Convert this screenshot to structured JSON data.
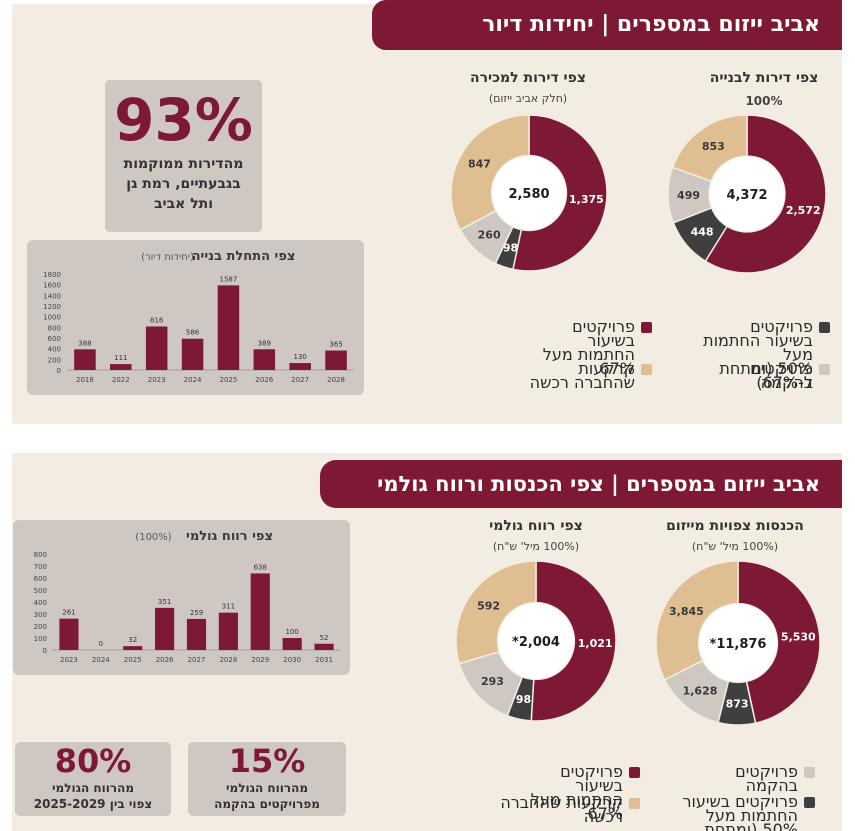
{
  "colors": {
    "maroon": "#7d1935",
    "tan": "#dfbf91",
    "gray_light": "#cfc7c2",
    "charcoal": "#3f3f3f",
    "panel": "#f3ece2"
  },
  "top": {
    "banner": "אביב ייזום במספרים | יחידות דיור",
    "donut_build": {
      "title": "צפי דירות לבנייה",
      "subtitle": "100%",
      "center": "4,372",
      "slices": [
        {
          "label": "2,572",
          "value": 2572,
          "color": "#7d1935"
        },
        {
          "label": "448",
          "value": 448,
          "color": "#3f3f3f"
        },
        {
          "label": "499",
          "value": 499,
          "color": "#cfc7c2"
        },
        {
          "label": "853",
          "value": 853,
          "color": "#dfbf91"
        }
      ]
    },
    "donut_sale": {
      "title": "צפי דירות למכירה",
      "subtitle": "(חלק אביב ייזום)",
      "center": "2,580",
      "slices": [
        {
          "label": "1,375",
          "value": 1375,
          "color": "#7d1935"
        },
        {
          "label": "98",
          "value": 98,
          "color": "#3f3f3f"
        },
        {
          "label": "260",
          "value": 260,
          "color": "#cfc7c2"
        },
        {
          "label": "847",
          "value": 847,
          "color": "#dfbf91"
        }
      ]
    },
    "stat": {
      "big": "93%",
      "line1": "מהדירות ממוקמות",
      "line2": "בגבעתיים, רמת גן",
      "line3": "ותל אביב"
    },
    "legend": {
      "maroon_a": "פרויקטים בשיעור",
      "maroon_b": "החתמות מעל 67%",
      "charcoal_a": "פרויקטים בשיעור החתמות מעל",
      "charcoal_b": "50% (ומתחת ל-67%)",
      "tan": "קרקעות שהחברה רכשה",
      "gray": "פרויקטים בהקמה"
    }
  },
  "chart_data": [
    {
      "type": "bar",
      "title": "צפי התחלת בנייה",
      "subtitle": "(יחידות דיור)",
      "categories": [
        "2018",
        "2022",
        "2023",
        "2024",
        "2025",
        "2026",
        "2027",
        "2028"
      ],
      "values": [
        388,
        111,
        816,
        586,
        1587,
        389,
        130,
        365
      ],
      "ylim": [
        0,
        1800
      ],
      "yticks": [
        0,
        200,
        400,
        600,
        800,
        1000,
        1200,
        1400,
        1600,
        1800
      ],
      "grid": false
    },
    {
      "type": "bar",
      "title": "צפי רווח גולמי",
      "subtitle": "(100%)",
      "categories": [
        "2023",
        "2024",
        "2025",
        "2026",
        "2027",
        "2028",
        "2029",
        "2030",
        "2031"
      ],
      "values": [
        261,
        0,
        32,
        351,
        259,
        311,
        638,
        100,
        52
      ],
      "ylim": [
        0,
        800
      ],
      "yticks": [
        0,
        100,
        200,
        300,
        400,
        500,
        600,
        700,
        800
      ],
      "grid": false
    },
    {
      "type": "pie",
      "title": "צפי דירות לבנייה",
      "center": "4,372",
      "values": [
        2572,
        448,
        499,
        853
      ]
    },
    {
      "type": "pie",
      "title": "צפי דירות למכירה",
      "center": "2,580",
      "values": [
        1375,
        98,
        260,
        847
      ]
    },
    {
      "type": "pie",
      "title": "הכנסות צפויות מייזום",
      "center": "*11,876",
      "values": [
        5530,
        873,
        1628,
        3845
      ]
    },
    {
      "type": "pie",
      "title": "צפי רווח גולמי",
      "center": "*2,004",
      "values": [
        1021,
        98,
        293,
        592
      ]
    }
  ],
  "bottom": {
    "banner": "אביב ייזום במספרים | צפי הכנסות ורווח גולמי",
    "donut_income": {
      "title": "הכנסות צפויות מייזום",
      "subtitle": "(100% מיל' ש\"ח)",
      "center": "*11,876",
      "slices": [
        {
          "label": "5,530",
          "value": 5530,
          "color": "#7d1935"
        },
        {
          "label": "873",
          "value": 873,
          "color": "#3f3f3f"
        },
        {
          "label": "1,628",
          "value": 1628,
          "color": "#cfc7c2"
        },
        {
          "label": "3,845",
          "value": 3845,
          "color": "#dfbf91"
        }
      ]
    },
    "donut_profit": {
      "title": "צפי רווח גולמי",
      "subtitle": "(100% מיל' ש\"ח)",
      "center": "*2,004",
      "slices": [
        {
          "label": "1,021",
          "value": 1021,
          "color": "#7d1935"
        },
        {
          "label": "98",
          "value": 98,
          "color": "#3f3f3f"
        },
        {
          "label": "293",
          "value": 293,
          "color": "#cfc7c2"
        },
        {
          "label": "592",
          "value": 592,
          "color": "#dfbf91"
        }
      ]
    },
    "stat_left": {
      "big": "80%",
      "line1": "מהרווח הגולמי",
      "line2": "צפוי בין 2025-2029"
    },
    "stat_right": {
      "big": "15%",
      "line1": "מהרווח הגולמי",
      "line2": "מפרויקטים בהקמה"
    },
    "legend": {
      "gray": "פרויקטים בהקמה",
      "maroon_a": "פרויקטים בשיעור",
      "maroon_b": "החתמות מעל 67%",
      "charcoal_a": "פרויקטים בשיעור החתמות מעל",
      "charcoal_b": "50% (ומתחת ל-67%)",
      "tan": "קרקעות שהחברה רכשה"
    }
  }
}
